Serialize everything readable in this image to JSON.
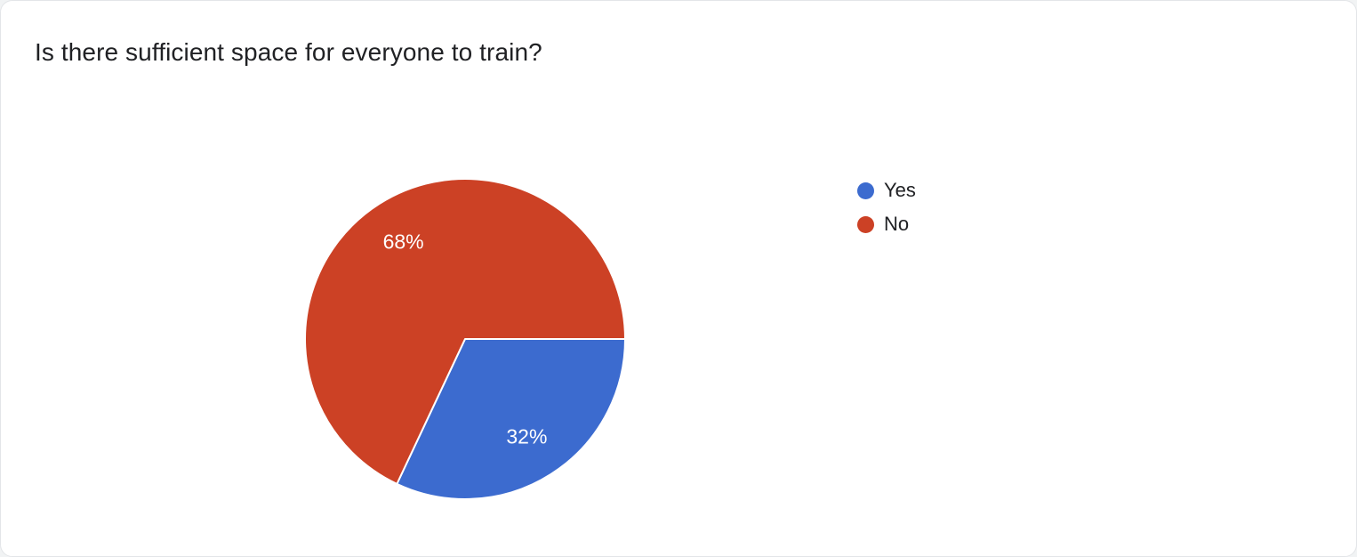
{
  "card": {
    "title": "Is there sufficient space for everyone to train?"
  },
  "chart_data": {
    "type": "pie",
    "title": "Is there sufficient space for everyone to train?",
    "categories": [
      "Yes",
      "No"
    ],
    "values": [
      32,
      68
    ],
    "unit": "%",
    "slice_labels": [
      "32%",
      "68%"
    ],
    "colors": [
      "#3c6bcf",
      "#cc4125"
    ],
    "legend_position": "right",
    "start_angle_deg": 0,
    "direction": "clockwise",
    "legend": [
      {
        "label": "Yes",
        "color": "#3c6bcf"
      },
      {
        "label": "No",
        "color": "#cc4125"
      }
    ]
  }
}
